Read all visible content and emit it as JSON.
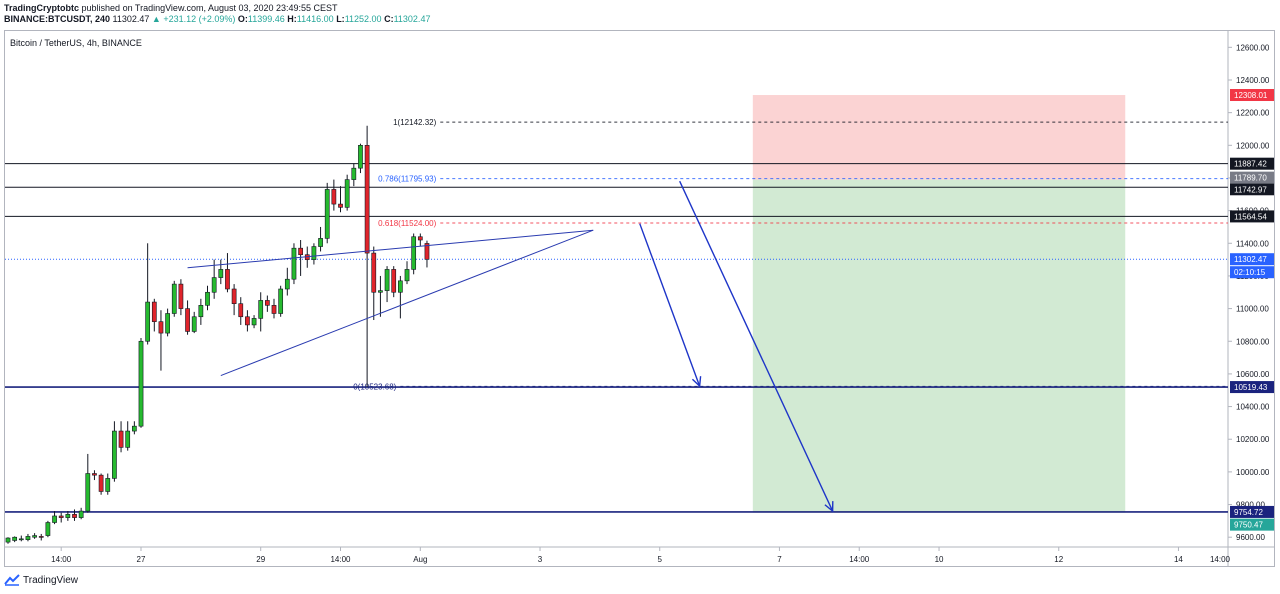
{
  "header": {
    "publisher": "TradingCryptobtc",
    "published_text": "published on TradingView.com, August 03, 2020 23:49:55 CEST",
    "symbol_line": "BINANCE:BTCUSDT, 240",
    "last": "11302.47",
    "change": "▲ +231.12 (+2.09%)",
    "o_label": "O:",
    "o_value": "11399.46",
    "h_label": "H:",
    "h_value": "11416.00",
    "l_label": "L:",
    "l_value": "11252.00",
    "c_label": "C:",
    "c_value": "11302.47"
  },
  "pair_label": "Bitcoin / TetherUS, 4h, BINANCE",
  "footer": {
    "brand": "TradingView",
    "logo_icon": "tradingview-logo-icon"
  },
  "chart_data": {
    "type": "candlestick",
    "yrange": [
      9540,
      12700
    ],
    "y_ticks": [
      9600,
      9800,
      10000,
      10200,
      10400,
      10600,
      10800,
      11000,
      11200,
      11400,
      11600,
      11800,
      12000,
      12200,
      12400,
      12600
    ],
    "x_range": [
      0,
      183
    ],
    "x_ticks": [
      {
        "x": 8,
        "label": "14:00"
      },
      {
        "x": 20,
        "label": "27"
      },
      {
        "x": 38,
        "label": "29"
      },
      {
        "x": 50,
        "label": "14:00"
      },
      {
        "x": 62,
        "label": "Aug"
      },
      {
        "x": 80,
        "label": "3"
      },
      {
        "x": 98,
        "label": "5"
      },
      {
        "x": 116,
        "label": "7"
      },
      {
        "x": 128,
        "label": "14:00"
      },
      {
        "x": 140,
        "label": "10"
      },
      {
        "x": 158,
        "label": "12"
      },
      {
        "x": 176,
        "label": "14"
      },
      {
        "x": 191,
        "label": "14:00"
      }
    ],
    "up_color": "#26ba2f",
    "down_color": "#e0242b",
    "candles": [
      [
        9570,
        9595,
        9560,
        9600
      ],
      [
        9580,
        9600,
        9570,
        9605
      ],
      [
        9590,
        9590,
        9575,
        9610
      ],
      [
        9585,
        9605,
        9575,
        9620
      ],
      [
        9600,
        9610,
        9590,
        9625
      ],
      [
        9605,
        9600,
        9580,
        9620
      ],
      [
        9610,
        9690,
        9600,
        9700
      ],
      [
        9690,
        9730,
        9680,
        9760
      ],
      [
        9730,
        9720,
        9690,
        9750
      ],
      [
        9720,
        9740,
        9700,
        9760
      ],
      [
        9740,
        9720,
        9700,
        9770
      ],
      [
        9720,
        9760,
        9710,
        9780
      ],
      [
        9760,
        9990,
        9750,
        10110
      ],
      [
        9990,
        9980,
        9950,
        10010
      ],
      [
        9980,
        9880,
        9860,
        9990
      ],
      [
        9880,
        9960,
        9860,
        9990
      ],
      [
        9960,
        10250,
        9940,
        10310
      ],
      [
        10250,
        10150,
        10120,
        10310
      ],
      [
        10150,
        10250,
        10130,
        10310
      ],
      [
        10250,
        10280,
        10230,
        10310
      ],
      [
        10280,
        10800,
        10270,
        10820
      ],
      [
        10800,
        11040,
        10780,
        11400
      ],
      [
        11040,
        10920,
        10860,
        11060
      ],
      [
        10920,
        10850,
        10620,
        10990
      ],
      [
        10850,
        10970,
        10830,
        11000
      ],
      [
        10970,
        11150,
        10950,
        11170
      ],
      [
        11150,
        11000,
        10960,
        11180
      ],
      [
        11000,
        10860,
        10840,
        11050
      ],
      [
        10860,
        10950,
        10850,
        10980
      ],
      [
        10950,
        11020,
        10900,
        11060
      ],
      [
        11020,
        11100,
        10990,
        11140
      ],
      [
        11100,
        11190,
        11060,
        11300
      ],
      [
        11190,
        11240,
        11150,
        11300
      ],
      [
        11240,
        11120,
        11100,
        11340
      ],
      [
        11120,
        11030,
        10960,
        11150
      ],
      [
        11030,
        10950,
        10900,
        11070
      ],
      [
        10950,
        10900,
        10860,
        10990
      ],
      [
        10900,
        10940,
        10880,
        10960
      ],
      [
        10940,
        11050,
        10860,
        11100
      ],
      [
        11050,
        11020,
        10980,
        11080
      ],
      [
        11020,
        10970,
        10940,
        11060
      ],
      [
        10970,
        11120,
        10950,
        11140
      ],
      [
        11120,
        11180,
        11080,
        11250
      ],
      [
        11180,
        11370,
        11150,
        11400
      ],
      [
        11370,
        11330,
        11200,
        11420
      ],
      [
        11330,
        11300,
        11250,
        11380
      ],
      [
        11300,
        11380,
        11270,
        11400
      ],
      [
        11380,
        11430,
        11350,
        11500
      ],
      [
        11430,
        11730,
        11400,
        11770
      ],
      [
        11730,
        11640,
        11600,
        11790
      ],
      [
        11640,
        11620,
        11590,
        11750
      ],
      [
        11620,
        11790,
        11600,
        11820
      ],
      [
        11790,
        11860,
        11750,
        11890
      ],
      [
        11860,
        12000,
        11830,
        12010
      ],
      [
        12000,
        11340,
        10520,
        12120
      ],
      [
        11340,
        11100,
        10930,
        11380
      ],
      [
        11100,
        11110,
        10950,
        11200
      ],
      [
        11110,
        11240,
        11040,
        11260
      ],
      [
        11240,
        11100,
        11070,
        11260
      ],
      [
        11100,
        11170,
        10940,
        11200
      ],
      [
        11170,
        11240,
        11150,
        11290
      ],
      [
        11240,
        11440,
        11210,
        11460
      ],
      [
        11440,
        11420,
        11380,
        11460
      ],
      [
        11399,
        11302,
        11252,
        11416
      ]
    ],
    "levels": [
      {
        "name": "resistance-1",
        "value": 11887.42,
        "label": "11887.42",
        "color": "#131722"
      },
      {
        "name": "resistance-2",
        "value": 11742.97,
        "label": "11742.97",
        "color": "#131722"
      },
      {
        "name": "resistance-3",
        "value": 11564.54,
        "label": "11564.54",
        "color": "#131722"
      },
      {
        "name": "support-1",
        "value": 10519.43,
        "label": "10519.43",
        "color": "#1a237e"
      },
      {
        "name": "support-2",
        "value": 9754.72,
        "label": "9754.72",
        "color": "#1a237e"
      }
    ],
    "fib_levels": [
      {
        "value": 12142.32,
        "label": "1(12142.32)",
        "color": "#131722"
      },
      {
        "value": 11795.93,
        "label": "0.786(11795.93)",
        "color": "#2962ff"
      },
      {
        "value": 11524.0,
        "label": "0.618(11524.00)",
        "color": "#f23645"
      },
      {
        "value": 10523.68,
        "label": "0(10523.68)",
        "color": "#1a237e"
      }
    ],
    "last_price": {
      "value": 11302.47,
      "label": "11302.47",
      "countdown": "02:10:15",
      "color": "#2962ff"
    },
    "position": {
      "entry": 11789.7,
      "entry_label": "11789.70",
      "stop": 12308.01,
      "stop_label": "12308.01",
      "target": 9750.47,
      "target_label": "9750.47",
      "x_start": 112,
      "x_end": 168
    },
    "wedge": {
      "upper": [
        [
          27,
          11250
        ],
        [
          88,
          11480
        ]
      ],
      "lower": [
        [
          32,
          10590
        ],
        [
          88,
          11480
        ]
      ]
    },
    "arrows": [
      {
        "from": [
          95,
          11520
        ],
        "to": [
          104,
          10525
        ]
      },
      {
        "from": [
          101,
          11780
        ],
        "to": [
          124,
          9760
        ]
      }
    ]
  }
}
